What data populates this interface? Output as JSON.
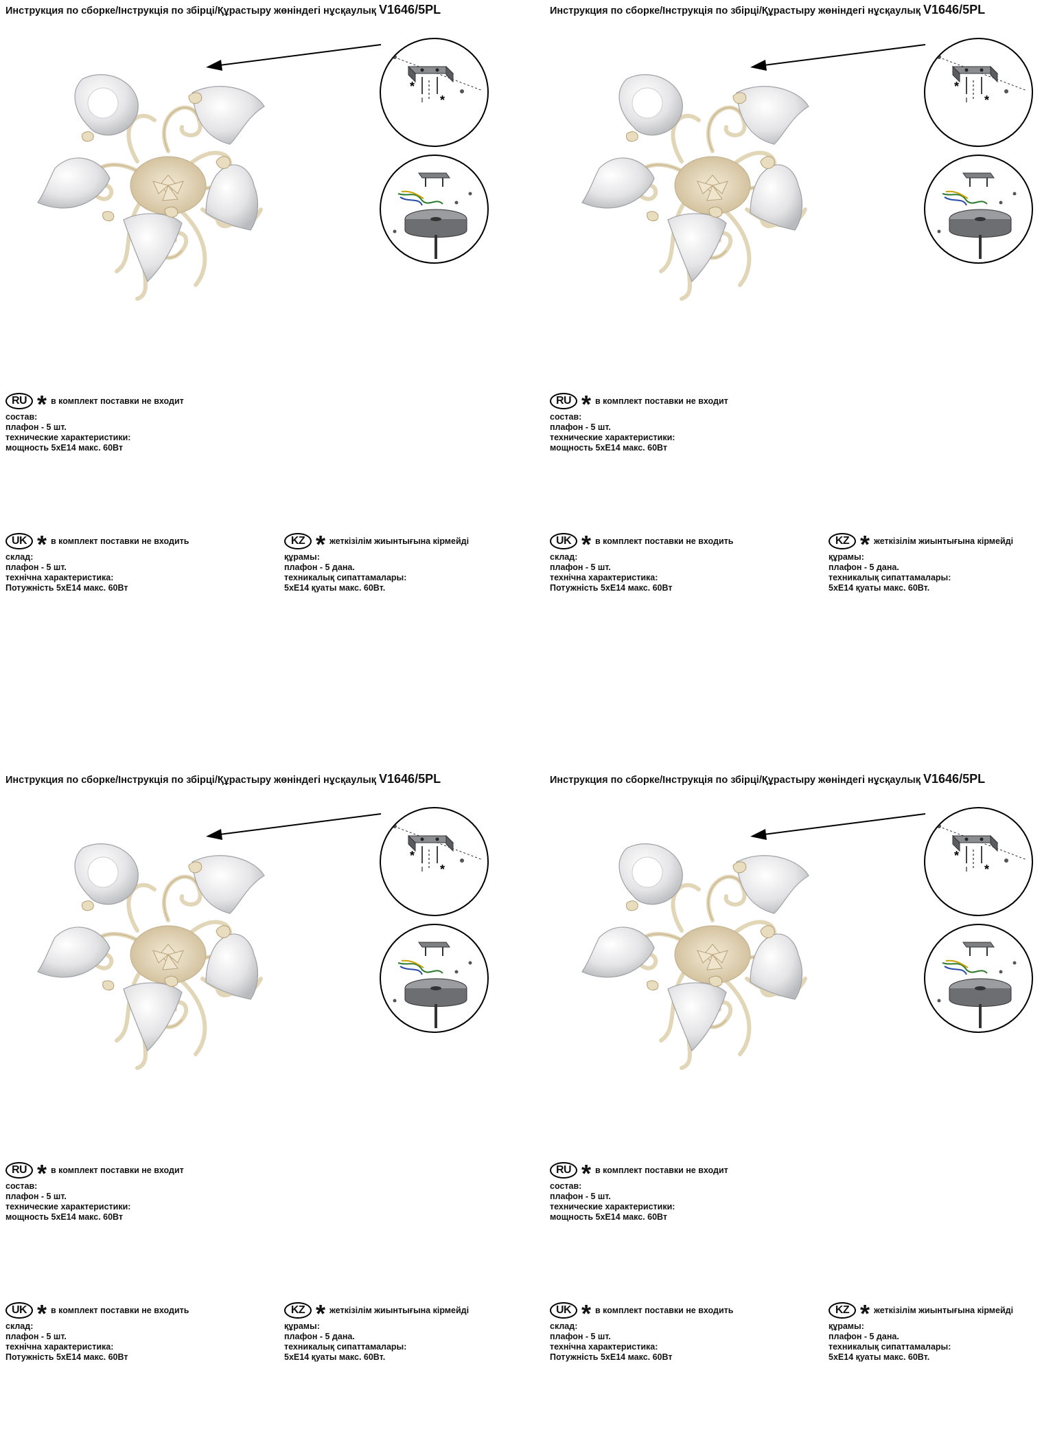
{
  "doc": {
    "title": "Инструкция по сборке/Інструкція по збірці/Құрастыру жөніндегі нұсқаулық",
    "model": "V1646/5PL",
    "star": "*",
    "ru": {
      "badge": "RU",
      "note": "в комплект поставки не входит",
      "lines": [
        "состав:",
        "плафон - 5 шт.",
        "технические характеристики:",
        "мощность 5хЕ14 макс. 60Вт"
      ]
    },
    "uk": {
      "badge": "UK",
      "note": "в комплект поставки не входить",
      "lines": [
        "склад:",
        "плафон - 5 шт.",
        "технічна характеристика:",
        "Потужність 5хЕ14 макс. 60Вт"
      ]
    },
    "kz": {
      "badge": "KZ",
      "note": "жеткізілім жиынтығына кірмейді",
      "lines": [
        "құрамы:",
        "плафон - 5 дана.",
        "техникалық сипаттамалары:",
        "5хЕ14 қуаты макс. 60Вт."
      ]
    }
  }
}
